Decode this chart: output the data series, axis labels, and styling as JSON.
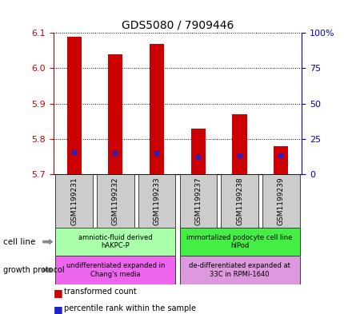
{
  "title": "GDS5080 / 7909446",
  "samples": [
    "GSM1199231",
    "GSM1199232",
    "GSM1199233",
    "GSM1199237",
    "GSM1199238",
    "GSM1199239"
  ],
  "bar_bottoms": [
    5.7,
    5.7,
    5.7,
    5.7,
    5.7,
    5.7
  ],
  "bar_tops": [
    6.09,
    6.04,
    6.07,
    5.83,
    5.87,
    5.78
  ],
  "percentile_values": [
    5.762,
    5.76,
    5.76,
    5.748,
    5.752,
    5.752
  ],
  "ylim": [
    5.7,
    6.1
  ],
  "yticks": [
    5.7,
    5.8,
    5.9,
    6.0,
    6.1
  ],
  "right_yticks": [
    0,
    25,
    50,
    75,
    100
  ],
  "right_ytick_labels": [
    "0",
    "25",
    "50",
    "75",
    "100%"
  ],
  "bar_color": "#cc0000",
  "percentile_color": "#2222cc",
  "cell_line_groups": [
    {
      "label": "amniotic-fluid derived\nhAKPC-P",
      "start": 0,
      "end": 3,
      "color": "#aaffaa"
    },
    {
      "label": "immortalized podocyte cell line\nhIPod",
      "start": 3,
      "end": 6,
      "color": "#44ee44"
    }
  ],
  "growth_protocol_groups": [
    {
      "label": "undifferentiated expanded in\nChang's media",
      "start": 0,
      "end": 3,
      "color": "#ee66ee"
    },
    {
      "label": "de-differentiated expanded at\n33C in RPMI-1640",
      "start": 3,
      "end": 6,
      "color": "#dd99dd"
    }
  ],
  "grid_color": "#000000",
  "left_label_color": "#cc0000",
  "right_label_color": "#0000cc",
  "sample_bg_color": "#cccccc",
  "bar_width": 0.35
}
